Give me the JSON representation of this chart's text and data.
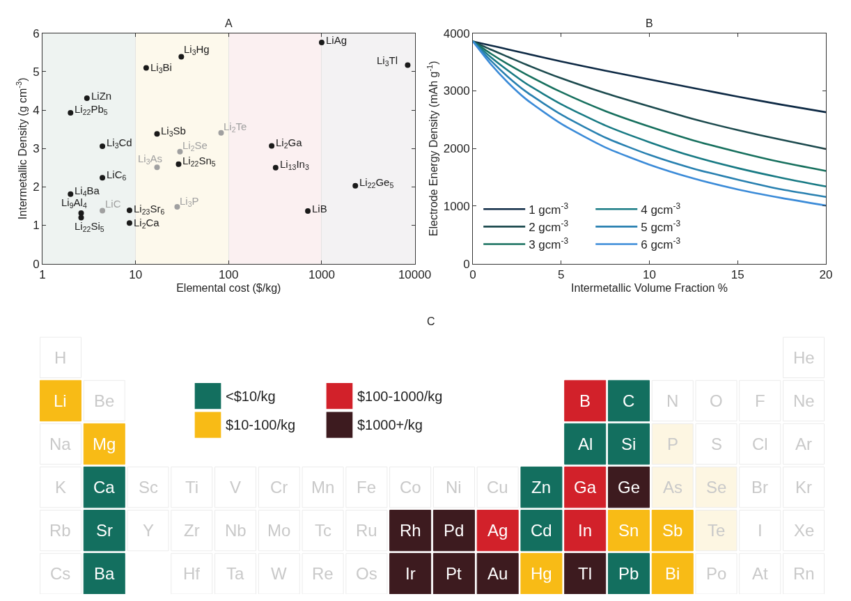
{
  "chart_data": [
    {
      "type": "scatter",
      "title": "A",
      "xlabel": "Elemental cost ($/kg)",
      "ylabel": "Intermetallic Density (g cm$^{-3}$)",
      "log": "x",
      "xlim": [
        1,
        10000
      ],
      "xticks": [
        1,
        10,
        100,
        1000,
        10000
      ],
      "ylim": [
        0,
        6
      ],
      "yticks": [
        0,
        1,
        2,
        3,
        4,
        5,
        6
      ],
      "grid": "x",
      "legend": false,
      "marker": "circle",
      "series": [
        {
          "color": "#1a1a1a",
          "x": [
            3.0,
            2.0,
            4.4,
            4.4,
            2.0,
            2.6,
            2.6,
            8.6,
            8.6,
            13,
            31,
            17,
            29,
            1000,
            8400,
            290,
            320,
            2300,
            710
          ],
          "values": [
            4.31,
            3.93,
            3.06,
            2.24,
            1.81,
            1.32,
            1.2,
            1.39,
            1.06,
            5.1,
            5.39,
            3.38,
            2.59,
            5.76,
            5.17,
            3.07,
            2.5,
            2.03,
            1.37
          ]
        },
        {
          "color": "#a0a0a0",
          "x": [
            4.4,
            17,
            30,
            28,
            83
          ],
          "values": [
            1.38,
            2.51,
            2.92,
            1.48,
            3.41
          ]
        }
      ],
      "bands": [
        {
          "axis": "x",
          "from": 1,
          "to": 10,
          "label": null,
          "color": "#eef3f1"
        },
        {
          "axis": "x",
          "from": 10,
          "to": 100,
          "label": null,
          "color": "#fdf9ec"
        },
        {
          "axis": "x",
          "from": 100,
          "to": 1000,
          "label": null,
          "color": "#fbf0f1"
        },
        {
          "axis": "x",
          "from": 1000,
          "to": 10000,
          "label": null,
          "color": "#f3f2f3"
        }
      ],
      "annotations": [
        {
          "text": "LiZn",
          "x": 3.0,
          "y": 4.31
        },
        {
          "text": "Li$_{22}$Pb$_{5}$",
          "x": 2.0,
          "y": 3.93
        },
        {
          "text": "Li$_{3}$Cd",
          "x": 4.4,
          "y": 3.06
        },
        {
          "text": "LiC$_{6}$",
          "x": 4.4,
          "y": 2.24
        },
        {
          "text": "Li$_{4}$Ba",
          "x": 2.0,
          "y": 1.81
        },
        {
          "text": "Li$_{9}$Al$_{4}$",
          "x": 2.6,
          "y": 1.32
        },
        {
          "text": "Li$_{22}$Si$_{5}$",
          "x": 2.6,
          "y": 1.2
        },
        {
          "text": "LiC",
          "x": 4.4,
          "y": 1.38
        },
        {
          "text": "Li$_{23}$Sr$_{6}$",
          "x": 8.6,
          "y": 1.39
        },
        {
          "text": "Li$_{2}$Ca",
          "x": 8.6,
          "y": 1.06
        },
        {
          "text": "Li$_{3}$Bi",
          "x": 13,
          "y": 5.1
        },
        {
          "text": "Li$_{3}$Hg",
          "x": 31,
          "y": 5.39
        },
        {
          "text": "Li$_{3}$Sb",
          "x": 17,
          "y": 3.38
        },
        {
          "text": "Li$_{3}$As",
          "x": 17,
          "y": 2.51
        },
        {
          "text": "Li$_{2}$Se",
          "x": 30,
          "y": 2.92
        },
        {
          "text": "Li$_{22}$Sn$_{5}$",
          "x": 29,
          "y": 2.59
        },
        {
          "text": "Li$_{3}$P",
          "x": 28,
          "y": 1.48
        },
        {
          "text": "Li$_{2}$Te",
          "x": 83,
          "y": 3.41
        },
        {
          "text": "LiAg",
          "x": 1000,
          "y": 5.76
        },
        {
          "text": "Li$_{3}$Tl",
          "x": 8400,
          "y": 5.17
        },
        {
          "text": "Li$_{2}$Ga",
          "x": 290,
          "y": 3.07
        },
        {
          "text": "Li$_{13}$In$_{3}$",
          "x": 320,
          "y": 2.5
        },
        {
          "text": "Li$_{22}$Ge$_{5}$",
          "x": 2300,
          "y": 2.03
        },
        {
          "text": "LiB",
          "x": 710,
          "y": 1.37
        }
      ]
    },
    {
      "type": "line",
      "title": "B",
      "xlabel": "Intermetallic Volume Fraction %",
      "ylabel": "Electrode Energy Density (mAh g$^{-1}$)",
      "xlim": [
        0,
        20
      ],
      "xticks": [
        0,
        5,
        10,
        15,
        20
      ],
      "ylim": [
        0,
        4000
      ],
      "yticks": [
        0,
        1000,
        2000,
        3000,
        4000
      ],
      "grid": false,
      "legend": "bottom left",
      "x": [
        0,
        1,
        2,
        3,
        5,
        7.5,
        10,
        12.5,
        15,
        17.5,
        20
      ],
      "series": [
        {
          "name": "1 gcm$^{-3}$",
          "color": "#0d2944",
          "values": [
            3860,
            3790,
            3720,
            3650,
            3510,
            3350,
            3200,
            3050,
            2900,
            2760,
            2630
          ]
        },
        {
          "name": "2 gcm$^{-3}$",
          "color": "#1c4a4e",
          "values": [
            3860,
            3720,
            3590,
            3460,
            3220,
            2960,
            2730,
            2510,
            2320,
            2150,
            1990
          ]
        },
        {
          "name": "3 gcm$^{-3}$",
          "color": "#17705e",
          "values": [
            3860,
            3650,
            3460,
            3290,
            2980,
            2650,
            2380,
            2140,
            1940,
            1760,
            1610
          ]
        },
        {
          "name": "4 gcm$^{-3}$",
          "color": "#187a84",
          "values": [
            3860,
            3590,
            3350,
            3130,
            2770,
            2400,
            2110,
            1860,
            1660,
            1490,
            1340
          ]
        },
        {
          "name": "5 gcm$^{-3}$",
          "color": "#2880b0",
          "values": [
            3860,
            3530,
            3240,
            2990,
            2590,
            2190,
            1890,
            1650,
            1460,
            1290,
            1160
          ]
        },
        {
          "name": "6 gcm$^{-3}$",
          "color": "#3b8bd8",
          "values": [
            3860,
            3470,
            3140,
            2860,
            2430,
            2020,
            1720,
            1480,
            1290,
            1140,
            1010
          ]
        }
      ]
    },
    {
      "type": "other",
      "title": "C",
      "legend": "top",
      "series": [
        {
          "name": "<$10/kg",
          "color": "#136f5f"
        },
        {
          "name": "$10-100/kg",
          "color": "#f8bb16"
        },
        {
          "name": "$100-1000/kg",
          "color": "#d2212a"
        },
        {
          "name": "$1000+/kg",
          "color": "#3d1b1f"
        }
      ],
      "cell_labels": [
        [
          "H",
          null,
          null,
          null,
          null,
          null,
          null,
          null,
          null,
          null,
          null,
          null,
          null,
          null,
          null,
          null,
          null,
          "He"
        ],
        [
          "Li",
          "Be",
          null,
          null,
          null,
          null,
          null,
          null,
          null,
          null,
          null,
          null,
          "B",
          "C",
          "N",
          "O",
          "F",
          "Ne"
        ],
        [
          "Na",
          "Mg",
          null,
          null,
          null,
          null,
          null,
          null,
          null,
          null,
          null,
          null,
          "Al",
          "Si",
          "P",
          "S",
          "Cl",
          "Ar"
        ],
        [
          "K",
          "Ca",
          "Sc",
          "Ti",
          "V",
          "Cr",
          "Mn",
          "Fe",
          "Co",
          "Ni",
          "Cu",
          "Zn",
          "Ga",
          "Ge",
          "As",
          "Se",
          "Br",
          "Kr"
        ],
        [
          "Rb",
          "Sr",
          "Y",
          "Zr",
          "Nb",
          "Mo",
          "Tc",
          "Ru",
          "Rh",
          "Pd",
          "Ag",
          "Cd",
          "In",
          "Sn",
          "Sb",
          "Te",
          "I",
          "Xe"
        ],
        [
          "Cs",
          "Ba",
          null,
          "Hf",
          "Ta",
          "W",
          "Re",
          "Os",
          "Ir",
          "Pt",
          "Au",
          "Hg",
          "Tl",
          "Pb",
          "Bi",
          "Po",
          "At",
          "Rn"
        ]
      ],
      "colors": [
        [
          "#ffffff",
          null,
          null,
          null,
          null,
          null,
          null,
          null,
          null,
          null,
          null,
          null,
          null,
          null,
          null,
          null,
          null,
          "#ffffff"
        ],
        [
          "#f8bb16",
          "#ffffff",
          null,
          null,
          null,
          null,
          null,
          null,
          null,
          null,
          null,
          null,
          "#d2212a",
          "#136f5f",
          "#ffffff",
          "#ffffff",
          "#ffffff",
          "#ffffff"
        ],
        [
          "#ffffff",
          "#f8bb16",
          null,
          null,
          null,
          null,
          null,
          null,
          null,
          null,
          null,
          null,
          "#136f5f",
          "#136f5f",
          "#fdf6e2",
          "#ffffff",
          "#ffffff",
          "#ffffff"
        ],
        [
          "#ffffff",
          "#136f5f",
          "#ffffff",
          "#ffffff",
          "#ffffff",
          "#ffffff",
          "#ffffff",
          "#ffffff",
          "#ffffff",
          "#ffffff",
          "#ffffff",
          "#136f5f",
          "#d2212a",
          "#3d1b1f",
          "#fdf6e2",
          "#fdf6e2",
          "#ffffff",
          "#ffffff"
        ],
        [
          "#ffffff",
          "#136f5f",
          "#ffffff",
          "#ffffff",
          "#ffffff",
          "#ffffff",
          "#ffffff",
          "#ffffff",
          "#3d1b1f",
          "#3d1b1f",
          "#d2212a",
          "#136f5f",
          "#d2212a",
          "#f8bb16",
          "#f8bb16",
          "#fdf6e2",
          "#ffffff",
          "#ffffff"
        ],
        [
          "#ffffff",
          "#136f5f",
          null,
          "#ffffff",
          "#ffffff",
          "#ffffff",
          "#ffffff",
          "#ffffff",
          "#3d1b1f",
          "#3d1b1f",
          "#3d1b1f",
          "#f8bb16",
          "#3d1b1f",
          "#136f5f",
          "#f8bb16",
          "#ffffff",
          "#ffffff",
          "#ffffff"
        ]
      ]
    }
  ]
}
